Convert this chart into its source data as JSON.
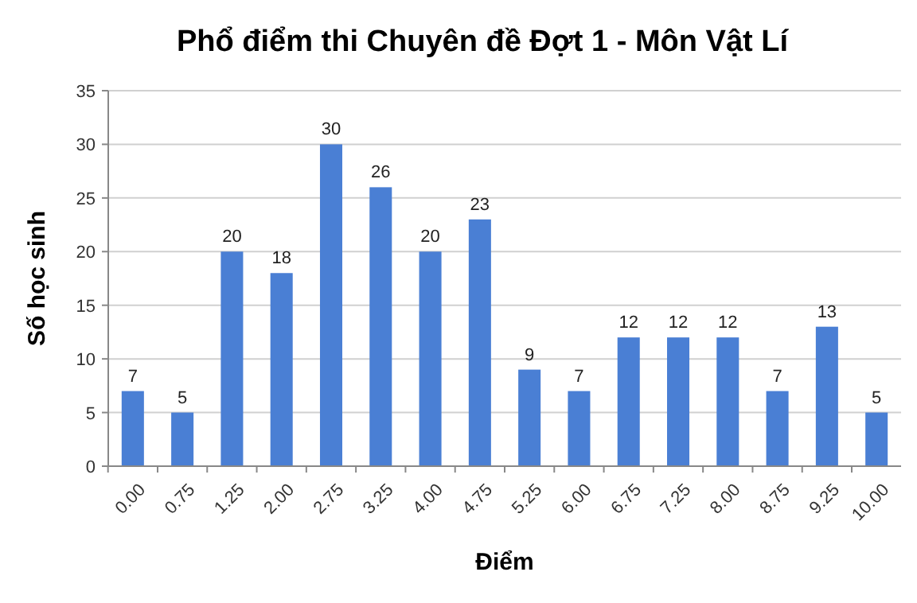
{
  "chart_data": {
    "type": "bar",
    "title": "Phổ điểm thi Chuyên đề Đợt 1 - Môn Vật Lí",
    "xlabel": "Điểm",
    "ylabel": "Số học sinh",
    "categories": [
      "0.00",
      "0.75",
      "1.25",
      "2.00",
      "2.75",
      "3.25",
      "4.00",
      "4.75",
      "5.25",
      "6.00",
      "6.75",
      "7.25",
      "8.00",
      "8.75",
      "9.25",
      "10.00"
    ],
    "values": [
      7,
      5,
      20,
      18,
      30,
      26,
      20,
      23,
      9,
      7,
      12,
      12,
      12,
      7,
      13,
      5
    ],
    "color": "#4a7fd4",
    "ylim": [
      0,
      35
    ],
    "yticks": [
      0,
      5,
      10,
      15,
      20,
      25,
      30,
      35
    ],
    "grid": "y",
    "data_labels": true
  }
}
